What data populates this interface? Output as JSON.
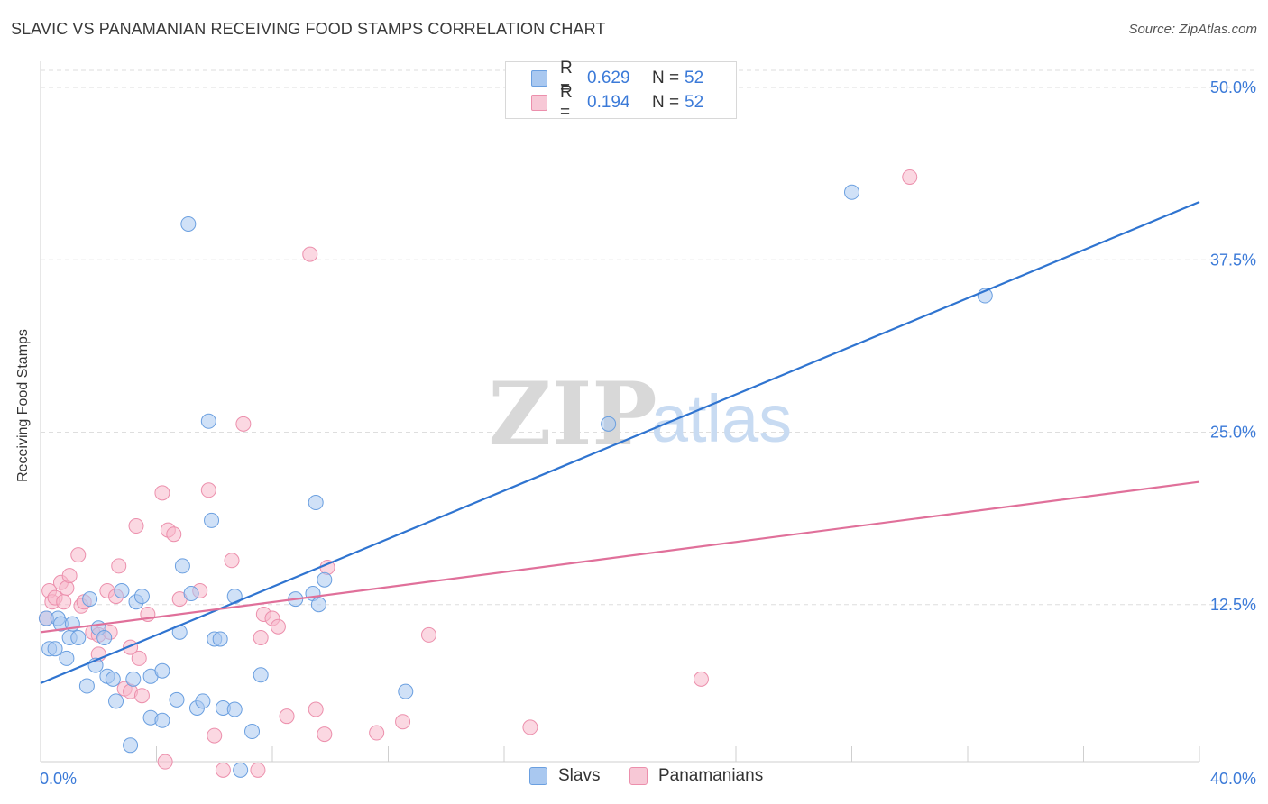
{
  "title": "SLAVIC VS PANAMANIAN RECEIVING FOOD STAMPS CORRELATION CHART",
  "source": "Source: ZipAtlas.com",
  "watermark": {
    "zip": "ZIP",
    "atlas": "atlas"
  },
  "colors": {
    "slavs_fill": "#a9c8f0",
    "slavs_stroke": "#6a9fe0",
    "slavs_line": "#2f74d0",
    "pan_fill": "#f7b8cb",
    "pan_stroke": "#ec8fac",
    "pan_line": "#e0709a",
    "value_text": "#3b7ad8",
    "grid": "#dedede"
  },
  "legend_top": [
    {
      "series": "Slavs",
      "r_label": "R =",
      "r_value": "0.629",
      "n_label": "N =",
      "n_value": "52"
    },
    {
      "series": "Panamanians",
      "r_label": "R =",
      "r_value": "0.194",
      "n_label": "N =",
      "n_value": "52"
    }
  ],
  "legend_bottom": [
    "Slavs",
    "Panamanians"
  ],
  "chart_data": {
    "type": "scatter",
    "title": "SLAVIC VS PANAMANIAN RECEIVING FOOD STAMPS CORRELATION CHART",
    "xlabel": "",
    "ylabel": "Receiving Food Stamps",
    "xlim": [
      0,
      40
    ],
    "ylim": [
      0,
      50
    ],
    "x_tick_labels": [
      "0.0%",
      "40.0%"
    ],
    "y_ticks": [
      12.5,
      25.0,
      37.5,
      50.0
    ],
    "y_tick_labels": [
      "12.5%",
      "25.0%",
      "37.5%",
      "50.0%"
    ],
    "grid": true,
    "legend_position": "top-center",
    "series": [
      {
        "name": "Slavs",
        "trend": {
          "x": [
            0,
            40
          ],
          "y": [
            6.8,
            41.7
          ]
        },
        "points": [
          [
            0.2,
            11.5
          ],
          [
            0.3,
            9.3
          ],
          [
            0.5,
            9.3
          ],
          [
            0.6,
            11.5
          ],
          [
            0.7,
            11.1
          ],
          [
            0.9,
            8.6
          ],
          [
            1.0,
            10.1
          ],
          [
            1.1,
            11.1
          ],
          [
            1.3,
            10.1
          ],
          [
            1.6,
            6.6
          ],
          [
            1.7,
            12.9
          ],
          [
            1.9,
            8.1
          ],
          [
            2.0,
            10.8
          ],
          [
            2.2,
            10.1
          ],
          [
            2.3,
            7.3
          ],
          [
            2.5,
            7.1
          ],
          [
            2.6,
            5.5
          ],
          [
            2.8,
            13.5
          ],
          [
            3.1,
            2.3
          ],
          [
            3.2,
            7.1
          ],
          [
            3.3,
            12.7
          ],
          [
            3.5,
            13.1
          ],
          [
            3.8,
            7.3
          ],
          [
            3.8,
            4.3
          ],
          [
            4.2,
            7.7
          ],
          [
            4.2,
            4.1
          ],
          [
            4.7,
            5.6
          ],
          [
            4.8,
            10.5
          ],
          [
            4.9,
            15.3
          ],
          [
            5.1,
            40.1
          ],
          [
            5.2,
            13.3
          ],
          [
            5.4,
            5.0
          ],
          [
            5.6,
            5.5
          ],
          [
            5.8,
            25.8
          ],
          [
            5.9,
            18.6
          ],
          [
            6.0,
            10.0
          ],
          [
            6.2,
            10.0
          ],
          [
            6.3,
            5.0
          ],
          [
            6.7,
            4.9
          ],
          [
            6.7,
            13.1
          ],
          [
            6.9,
            0.5
          ],
          [
            7.3,
            3.3
          ],
          [
            7.6,
            7.4
          ],
          [
            8.8,
            12.9
          ],
          [
            9.4,
            13.3
          ],
          [
            9.5,
            19.9
          ],
          [
            9.6,
            12.5
          ],
          [
            9.8,
            14.3
          ],
          [
            12.6,
            6.2
          ],
          [
            19.6,
            25.6
          ],
          [
            28.0,
            42.4
          ],
          [
            32.6,
            34.9
          ]
        ]
      },
      {
        "name": "Panamanians",
        "trend": {
          "x": [
            0,
            40
          ],
          "y": [
            10.5,
            21.4
          ]
        },
        "points": [
          [
            0.2,
            11.5
          ],
          [
            0.3,
            13.5
          ],
          [
            0.4,
            12.7
          ],
          [
            0.5,
            13.0
          ],
          [
            0.7,
            14.1
          ],
          [
            0.8,
            12.7
          ],
          [
            0.9,
            13.7
          ],
          [
            1.0,
            14.6
          ],
          [
            1.3,
            16.1
          ],
          [
            1.4,
            12.4
          ],
          [
            1.5,
            12.7
          ],
          [
            1.8,
            10.5
          ],
          [
            2.0,
            10.3
          ],
          [
            2.0,
            8.9
          ],
          [
            2.3,
            13.5
          ],
          [
            2.4,
            10.5
          ],
          [
            2.6,
            13.1
          ],
          [
            2.7,
            15.3
          ],
          [
            2.9,
            6.4
          ],
          [
            3.1,
            6.2
          ],
          [
            3.1,
            9.4
          ],
          [
            3.3,
            18.2
          ],
          [
            3.4,
            8.6
          ],
          [
            3.5,
            5.9
          ],
          [
            3.7,
            11.8
          ],
          [
            4.2,
            20.6
          ],
          [
            4.3,
            1.1
          ],
          [
            4.4,
            17.9
          ],
          [
            4.6,
            17.6
          ],
          [
            4.8,
            12.9
          ],
          [
            5.5,
            13.5
          ],
          [
            5.8,
            20.8
          ],
          [
            6.0,
            3.0
          ],
          [
            6.3,
            0.5
          ],
          [
            6.6,
            15.7
          ],
          [
            7.0,
            25.6
          ],
          [
            7.5,
            0.5
          ],
          [
            7.6,
            10.1
          ],
          [
            7.7,
            11.8
          ],
          [
            8.0,
            11.5
          ],
          [
            8.2,
            10.9
          ],
          [
            8.5,
            4.4
          ],
          [
            9.3,
            37.9
          ],
          [
            9.5,
            4.9
          ],
          [
            9.8,
            3.1
          ],
          [
            9.9,
            15.2
          ],
          [
            11.6,
            3.2
          ],
          [
            12.5,
            4.0
          ],
          [
            13.4,
            10.3
          ],
          [
            16.9,
            3.6
          ],
          [
            22.8,
            7.1
          ],
          [
            30.0,
            43.5
          ]
        ]
      }
    ]
  }
}
